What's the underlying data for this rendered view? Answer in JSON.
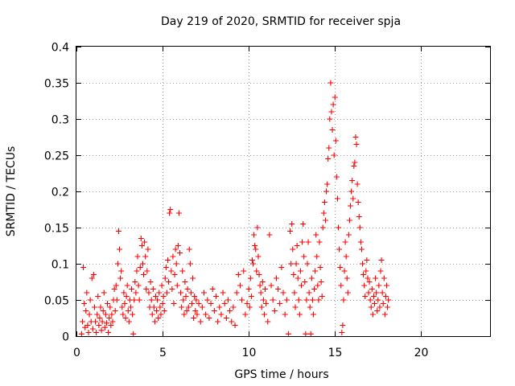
{
  "chart_data": {
    "type": "scatter",
    "title": "Day 219 of 2020, SRMTID for receiver spja",
    "xlabel": "GPS time / hours",
    "ylabel": "SRMTID / TECUs",
    "xlim": [
      0,
      24
    ],
    "ylim": [
      0,
      0.4
    ],
    "x_ticks": [
      0,
      5,
      10,
      15,
      20
    ],
    "y_ticks": [
      0,
      0.05,
      0.1,
      0.15,
      0.2,
      0.25,
      0.3,
      0.35,
      0.4
    ],
    "x_tick_labels": [
      "0",
      "5",
      "10",
      "15",
      "20"
    ],
    "y_tick_labels": [
      "0",
      "0.05",
      "0.1",
      "0.15",
      "0.2",
      "0.25",
      "0.3",
      "0.35",
      "0.4"
    ],
    "grid": true,
    "marker": "plus",
    "color": "#ff0000",
    "points": [
      [
        0.3,
        0.003
      ],
      [
        0.35,
        0.02
      ],
      [
        0.4,
        0.095
      ],
      [
        0.45,
        0.045
      ],
      [
        0.5,
        0.012
      ],
      [
        0.55,
        0.035
      ],
      [
        0.6,
        0.06
      ],
      [
        0.65,
        0.015
      ],
      [
        0.7,
        0.005
      ],
      [
        0.75,
        0.03
      ],
      [
        0.8,
        0.05
      ],
      [
        0.85,
        0.02
      ],
      [
        0.9,
        0.08
      ],
      [
        0.95,
        0.01
      ],
      [
        1.0,
        0.085
      ],
      [
        1.05,
        0.04
      ],
      [
        1.1,
        0.02
      ],
      [
        1.15,
        0.005
      ],
      [
        1.2,
        0.03
      ],
      [
        1.25,
        0.055
      ],
      [
        1.3,
        0.015
      ],
      [
        1.35,
        0.025
      ],
      [
        1.4,
        0.04
      ],
      [
        1.45,
        0.008
      ],
      [
        1.5,
        0.02
      ],
      [
        1.55,
        0.035
      ],
      [
        1.6,
        0.06
      ],
      [
        1.65,
        0.012
      ],
      [
        1.7,
        0.03
      ],
      [
        1.75,
        0.018
      ],
      [
        1.8,
        0.045
      ],
      [
        1.85,
        0.005
      ],
      [
        1.9,
        0.025
      ],
      [
        1.95,
        0.04
      ],
      [
        2.0,
        0.015
      ],
      [
        2.05,
        0.03
      ],
      [
        2.1,
        0.02
      ],
      [
        2.15,
        0.05
      ],
      [
        2.2,
        0.065
      ],
      [
        2.25,
        0.035
      ],
      [
        2.3,
        0.07
      ],
      [
        2.35,
        0.05
      ],
      [
        2.4,
        0.1
      ],
      [
        2.45,
        0.145
      ],
      [
        2.5,
        0.12
      ],
      [
        2.55,
        0.08
      ],
      [
        2.6,
        0.09
      ],
      [
        2.65,
        0.04
      ],
      [
        2.7,
        0.03
      ],
      [
        2.75,
        0.06
      ],
      [
        2.8,
        0.045
      ],
      [
        2.85,
        0.025
      ],
      [
        2.9,
        0.055
      ],
      [
        2.95,
        0.07
      ],
      [
        3.0,
        0.035
      ],
      [
        3.05,
        0.02
      ],
      [
        3.1,
        0.05
      ],
      [
        3.15,
        0.04
      ],
      [
        3.2,
        0.065
      ],
      [
        3.25,
        0.03
      ],
      [
        3.3,
        0.003
      ],
      [
        3.35,
        0.05
      ],
      [
        3.4,
        0.075
      ],
      [
        3.45,
        0.06
      ],
      [
        3.5,
        0.09
      ],
      [
        3.55,
        0.11
      ],
      [
        3.6,
        0.07
      ],
      [
        3.65,
        0.05
      ],
      [
        3.7,
        0.095
      ],
      [
        3.75,
        0.135
      ],
      [
        3.8,
        0.125
      ],
      [
        3.85,
        0.1
      ],
      [
        3.9,
        0.085
      ],
      [
        3.95,
        0.13
      ],
      [
        4.0,
        0.11
      ],
      [
        4.05,
        0.065
      ],
      [
        4.1,
        0.09
      ],
      [
        4.15,
        0.12
      ],
      [
        4.2,
        0.06
      ],
      [
        4.25,
        0.04
      ],
      [
        4.3,
        0.075
      ],
      [
        4.35,
        0.05
      ],
      [
        4.4,
        0.03
      ],
      [
        4.45,
        0.065
      ],
      [
        4.5,
        0.04
      ],
      [
        4.55,
        0.02
      ],
      [
        4.6,
        0.055
      ],
      [
        4.65,
        0.035
      ],
      [
        4.7,
        0.05
      ],
      [
        4.75,
        0.025
      ],
      [
        4.8,
        0.06
      ],
      [
        4.85,
        0.04
      ],
      [
        4.9,
        0.03
      ],
      [
        4.95,
        0.07
      ],
      [
        5.0,
        0.045
      ],
      [
        5.05,
        0.055
      ],
      [
        5.1,
        0.035
      ],
      [
        5.15,
        0.08
      ],
      [
        5.2,
        0.095
      ],
      [
        5.25,
        0.06
      ],
      [
        5.3,
        0.105
      ],
      [
        5.35,
        0.075
      ],
      [
        5.4,
        0.17
      ],
      [
        5.45,
        0.175
      ],
      [
        5.5,
        0.09
      ],
      [
        5.55,
        0.065
      ],
      [
        5.6,
        0.11
      ],
      [
        5.65,
        0.045
      ],
      [
        5.7,
        0.085
      ],
      [
        5.75,
        0.12
      ],
      [
        5.8,
        0.1
      ],
      [
        5.85,
        0.07
      ],
      [
        5.9,
        0.125
      ],
      [
        5.95,
        0.17
      ],
      [
        6.0,
        0.115
      ],
      [
        6.05,
        0.06
      ],
      [
        6.1,
        0.04
      ],
      [
        6.15,
        0.09
      ],
      [
        6.2,
        0.05
      ],
      [
        6.25,
        0.03
      ],
      [
        6.3,
        0.075
      ],
      [
        6.35,
        0.055
      ],
      [
        6.4,
        0.035
      ],
      [
        6.45,
        0.065
      ],
      [
        6.5,
        0.04
      ],
      [
        6.55,
        0.12
      ],
      [
        6.6,
        0.1
      ],
      [
        6.65,
        0.06
      ],
      [
        6.7,
        0.045
      ],
      [
        6.75,
        0.08
      ],
      [
        6.8,
        0.025
      ],
      [
        6.85,
        0.055
      ],
      [
        6.9,
        0.035
      ],
      [
        6.95,
        0.05
      ],
      [
        7.0,
        0.03
      ],
      [
        7.1,
        0.045
      ],
      [
        7.2,
        0.02
      ],
      [
        7.3,
        0.04
      ],
      [
        7.4,
        0.06
      ],
      [
        7.5,
        0.03
      ],
      [
        7.6,
        0.05
      ],
      [
        7.7,
        0.025
      ],
      [
        7.8,
        0.045
      ],
      [
        7.9,
        0.065
      ],
      [
        8.0,
        0.035
      ],
      [
        8.1,
        0.055
      ],
      [
        8.2,
        0.02
      ],
      [
        8.3,
        0.04
      ],
      [
        8.4,
        0.03
      ],
      [
        8.5,
        0.06
      ],
      [
        8.6,
        0.045
      ],
      [
        8.7,
        0.025
      ],
      [
        8.8,
        0.05
      ],
      [
        8.9,
        0.035
      ],
      [
        9.0,
        0.02
      ],
      [
        9.1,
        0.04
      ],
      [
        9.2,
        0.015
      ],
      [
        9.3,
        0.06
      ],
      [
        9.4,
        0.085
      ],
      [
        9.5,
        0.07
      ],
      [
        9.6,
        0.05
      ],
      [
        9.7,
        0.09
      ],
      [
        9.8,
        0.03
      ],
      [
        9.9,
        0.045
      ],
      [
        10.0,
        0.065
      ],
      [
        10.05,
        0.04
      ],
      [
        10.1,
        0.08
      ],
      [
        10.15,
        0.055
      ],
      [
        10.2,
        0.105
      ],
      [
        10.25,
        0.1
      ],
      [
        10.3,
        0.14
      ],
      [
        10.35,
        0.125
      ],
      [
        10.4,
        0.12
      ],
      [
        10.45,
        0.09
      ],
      [
        10.5,
        0.15
      ],
      [
        10.55,
        0.11
      ],
      [
        10.6,
        0.085
      ],
      [
        10.65,
        0.07
      ],
      [
        10.7,
        0.06
      ],
      [
        10.75,
        0.04
      ],
      [
        10.8,
        0.075
      ],
      [
        10.85,
        0.05
      ],
      [
        10.9,
        0.03
      ],
      [
        10.95,
        0.065
      ],
      [
        11.0,
        0.045
      ],
      [
        11.1,
        0.02
      ],
      [
        11.2,
        0.14
      ],
      [
        11.3,
        0.07
      ],
      [
        11.4,
        0.05
      ],
      [
        11.5,
        0.035
      ],
      [
        11.6,
        0.08
      ],
      [
        11.7,
        0.065
      ],
      [
        11.8,
        0.045
      ],
      [
        11.9,
        0.095
      ],
      [
        12.0,
        0.06
      ],
      [
        12.1,
        0.03
      ],
      [
        12.2,
        0.05
      ],
      [
        12.3,
        0.003
      ],
      [
        12.4,
        0.145
      ],
      [
        12.45,
        0.1
      ],
      [
        12.5,
        0.155
      ],
      [
        12.55,
        0.12
      ],
      [
        12.6,
        0.085
      ],
      [
        12.65,
        0.06
      ],
      [
        12.7,
        0.04
      ],
      [
        12.75,
        0.1
      ],
      [
        12.8,
        0.125
      ],
      [
        12.85,
        0.08
      ],
      [
        12.9,
        0.05
      ],
      [
        12.95,
        0.03
      ],
      [
        13.0,
        0.09
      ],
      [
        13.05,
        0.07
      ],
      [
        13.1,
        0.13
      ],
      [
        13.15,
        0.155
      ],
      [
        13.2,
        0.11
      ],
      [
        13.25,
        0.075
      ],
      [
        13.3,
        0.003
      ],
      [
        13.35,
        0.05
      ],
      [
        13.4,
        0.1
      ],
      [
        13.45,
        0.13
      ],
      [
        13.5,
        0.06
      ],
      [
        13.55,
        0.04
      ],
      [
        13.6,
        0.003
      ],
      [
        13.65,
        0.08
      ],
      [
        13.7,
        0.05
      ],
      [
        13.75,
        0.03
      ],
      [
        13.8,
        0.065
      ],
      [
        13.85,
        0.09
      ],
      [
        13.9,
        0.14
      ],
      [
        13.95,
        0.11
      ],
      [
        14.0,
        0.07
      ],
      [
        14.05,
        0.05
      ],
      [
        14.1,
        0.13
      ],
      [
        14.15,
        0.095
      ],
      [
        14.2,
        0.075
      ],
      [
        14.25,
        0.055
      ],
      [
        14.3,
        0.15
      ],
      [
        14.35,
        0.17
      ],
      [
        14.4,
        0.185
      ],
      [
        14.45,
        0.16
      ],
      [
        14.5,
        0.2
      ],
      [
        14.55,
        0.21
      ],
      [
        14.6,
        0.245
      ],
      [
        14.65,
        0.26
      ],
      [
        14.7,
        0.3
      ],
      [
        14.75,
        0.35
      ],
      [
        14.8,
        0.31
      ],
      [
        14.85,
        0.285
      ],
      [
        14.9,
        0.32
      ],
      [
        14.95,
        0.25
      ],
      [
        15.0,
        0.33
      ],
      [
        15.05,
        0.27
      ],
      [
        15.1,
        0.22
      ],
      [
        15.15,
        0.19
      ],
      [
        15.2,
        0.15
      ],
      [
        15.25,
        0.12
      ],
      [
        15.3,
        0.095
      ],
      [
        15.35,
        0.07
      ],
      [
        15.4,
        0.005
      ],
      [
        15.45,
        0.015
      ],
      [
        15.5,
        0.05
      ],
      [
        15.55,
        0.09
      ],
      [
        15.6,
        0.13
      ],
      [
        15.65,
        0.11
      ],
      [
        15.7,
        0.08
      ],
      [
        15.75,
        0.06
      ],
      [
        15.8,
        0.14
      ],
      [
        15.85,
        0.16
      ],
      [
        15.9,
        0.18
      ],
      [
        15.95,
        0.2
      ],
      [
        16.0,
        0.215
      ],
      [
        16.05,
        0.19
      ],
      [
        16.1,
        0.235
      ],
      [
        16.15,
        0.24
      ],
      [
        16.2,
        0.275
      ],
      [
        16.25,
        0.265
      ],
      [
        16.3,
        0.21
      ],
      [
        16.35,
        0.185
      ],
      [
        16.4,
        0.165
      ],
      [
        16.45,
        0.15
      ],
      [
        16.5,
        0.13
      ],
      [
        16.55,
        0.12
      ],
      [
        16.6,
        0.1
      ],
      [
        16.65,
        0.085
      ],
      [
        16.7,
        0.07
      ],
      [
        16.75,
        0.055
      ],
      [
        16.8,
        0.09
      ],
      [
        16.85,
        0.105
      ],
      [
        16.9,
        0.08
      ],
      [
        16.95,
        0.06
      ],
      [
        17.0,
        0.075
      ],
      [
        17.05,
        0.05
      ],
      [
        17.1,
        0.04
      ],
      [
        17.15,
        0.065
      ],
      [
        17.2,
        0.03
      ],
      [
        17.25,
        0.055
      ],
      [
        17.3,
        0.045
      ],
      [
        17.35,
        0.08
      ],
      [
        17.4,
        0.06
      ],
      [
        17.45,
        0.035
      ],
      [
        17.5,
        0.05
      ],
      [
        17.55,
        0.07
      ],
      [
        17.6,
        0.04
      ],
      [
        17.65,
        0.09
      ],
      [
        17.7,
        0.105
      ],
      [
        17.75,
        0.06
      ],
      [
        17.8,
        0.045
      ],
      [
        17.85,
        0.08
      ],
      [
        17.9,
        0.03
      ],
      [
        17.95,
        0.055
      ],
      [
        18.0,
        0.07
      ],
      [
        18.05,
        0.04
      ],
      [
        18.1,
        0.05
      ]
    ]
  }
}
